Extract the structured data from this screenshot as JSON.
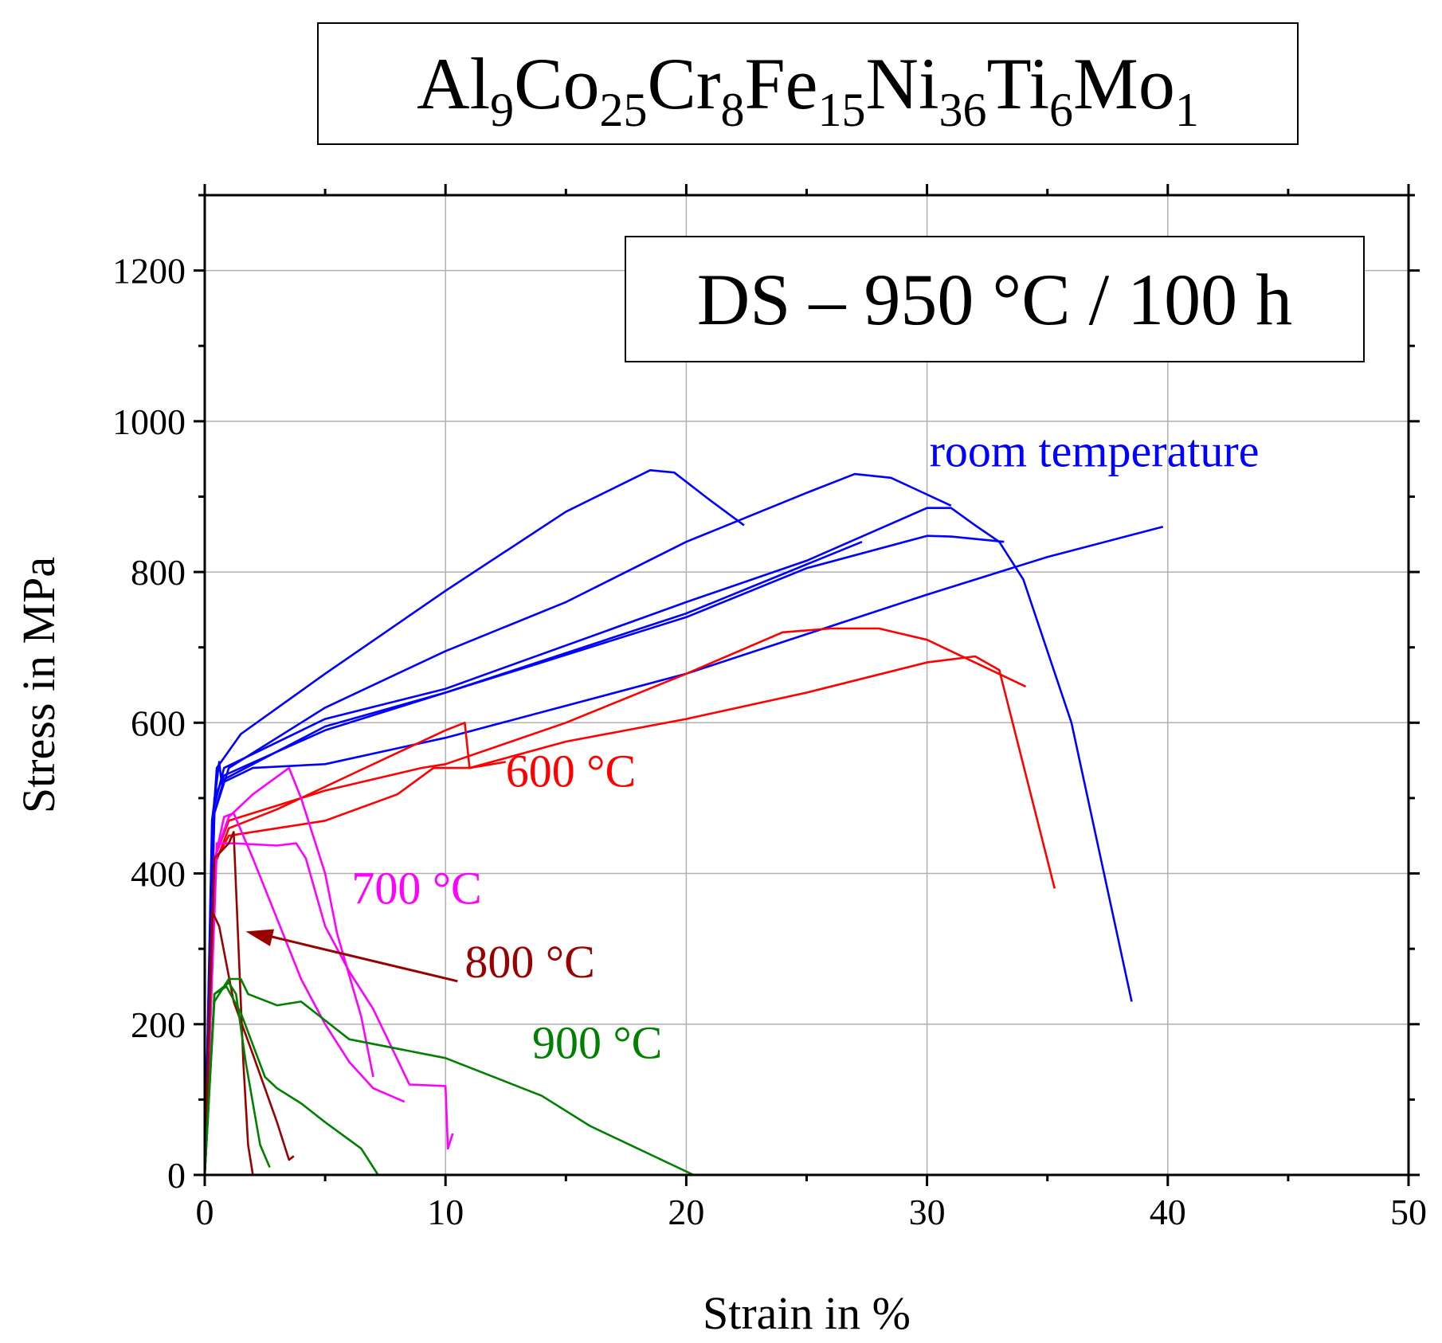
{
  "title": {
    "elements": [
      {
        "symbol": "Al",
        "sub": "9"
      },
      {
        "symbol": "Co",
        "sub": "25"
      },
      {
        "symbol": "Cr",
        "sub": "8"
      },
      {
        "symbol": "Fe",
        "sub": "15"
      },
      {
        "symbol": "Ni",
        "sub": "36"
      },
      {
        "symbol": "Ti",
        "sub": "6"
      },
      {
        "symbol": "Mo",
        "sub": "1"
      }
    ]
  },
  "chart_data": {
    "type": "line",
    "annotation_box": "DS – 950 °C / 100 h",
    "xlabel": "Strain in %",
    "ylabel": "Stress in MPa",
    "xlim": [
      0,
      50
    ],
    "ylim": [
      0,
      1300
    ],
    "xticks": [
      0,
      10,
      20,
      30,
      40,
      50
    ],
    "yticks": [
      0,
      200,
      400,
      600,
      800,
      1000,
      1200
    ],
    "grid": true,
    "series": [
      {
        "name": "room temperature",
        "color": "#0000ff",
        "curves": [
          [
            [
              0,
              0
            ],
            [
              0.3,
              450
            ],
            [
              0.5,
              540
            ],
            [
              1.5,
              585
            ],
            [
              5,
              665
            ],
            [
              10,
              775
            ],
            [
              15,
              880
            ],
            [
              18.5,
              935
            ],
            [
              19.5,
              932
            ],
            [
              21,
              895
            ],
            [
              22.4,
              862
            ]
          ],
          [
            [
              0,
              0
            ],
            [
              0.4,
              480
            ],
            [
              1,
              540
            ],
            [
              5,
              620
            ],
            [
              10,
              695
            ],
            [
              15,
              760
            ],
            [
              20,
              840
            ],
            [
              25,
              905
            ],
            [
              27,
              930
            ],
            [
              28.5,
              925
            ],
            [
              31,
              888
            ]
          ],
          [
            [
              0,
              0
            ],
            [
              0.4,
              490
            ],
            [
              0.8,
              540
            ],
            [
              5,
              605
            ],
            [
              10,
              645
            ],
            [
              20,
              760
            ],
            [
              25,
              815
            ],
            [
              30,
              885
            ],
            [
              31,
              885
            ],
            [
              32,
              862
            ],
            [
              33,
              840
            ],
            [
              34,
              790
            ],
            [
              36,
              600
            ],
            [
              38.5,
              230
            ]
          ],
          [
            [
              0,
              0
            ],
            [
              0.4,
              480
            ],
            [
              0.8,
              525
            ],
            [
              5,
              595
            ],
            [
              10,
              640
            ],
            [
              20,
              740
            ],
            [
              25,
              805
            ],
            [
              30,
              848
            ],
            [
              31,
              847
            ],
            [
              33.2,
              840
            ]
          ],
          [
            [
              0,
              0
            ],
            [
              0.4,
              500
            ],
            [
              0.8,
              530
            ],
            [
              5,
              590
            ],
            [
              10,
              640
            ],
            [
              20,
              745
            ],
            [
              27.3,
              840
            ]
          ],
          [
            [
              0,
              0
            ],
            [
              0.3,
              470
            ],
            [
              0.6,
              548
            ],
            [
              0.7,
              520
            ],
            [
              2,
              540
            ],
            [
              5,
              545
            ],
            [
              10,
              580
            ],
            [
              20,
              665
            ],
            [
              30,
              770
            ],
            [
              35,
              820
            ],
            [
              39.8,
              860
            ]
          ]
        ]
      },
      {
        "name": "600 °C",
        "color": "#ff0000",
        "curves": [
          [
            [
              0,
              0
            ],
            [
              0.4,
              410
            ],
            [
              1,
              460
            ],
            [
              3,
              485
            ],
            [
              6,
              530
            ],
            [
              10,
              590
            ],
            [
              10.8,
              600
            ],
            [
              11,
              540
            ],
            [
              15,
              575
            ],
            [
              20,
              605
            ],
            [
              25,
              640
            ],
            [
              30,
              680
            ],
            [
              32,
              688
            ],
            [
              33,
              670
            ],
            [
              35.3,
              380
            ]
          ],
          [
            [
              0,
              0
            ],
            [
              0.4,
              420
            ],
            [
              1,
              470
            ],
            [
              5,
              510
            ],
            [
              9,
              540
            ],
            [
              10,
              545
            ],
            [
              15,
              600
            ],
            [
              20,
              665
            ],
            [
              24,
              720
            ],
            [
              26,
              725
            ],
            [
              28,
              725
            ],
            [
              30,
              710
            ],
            [
              34.1,
              648
            ]
          ],
          [
            [
              0,
              0
            ],
            [
              0.4,
              415
            ],
            [
              1,
              450
            ],
            [
              5,
              470
            ],
            [
              8,
              505
            ],
            [
              9.5,
              540
            ],
            [
              11,
              540
            ],
            [
              12.5,
              548
            ]
          ]
        ]
      },
      {
        "name": "700 °C",
        "color": "#ff00ff",
        "curves": [
          [
            [
              0,
              0
            ],
            [
              0.4,
              420
            ],
            [
              1,
              475
            ],
            [
              2,
              505
            ],
            [
              3.5,
              540
            ],
            [
              4,
              500
            ],
            [
              5,
              400
            ],
            [
              5.5,
              320
            ],
            [
              6.5,
              210
            ],
            [
              7,
              130
            ]
          ],
          [
            [
              0,
              0
            ],
            [
              0.5,
              440
            ],
            [
              1.2,
              440
            ],
            [
              3,
              437
            ],
            [
              3.8,
              440
            ],
            [
              4.2,
              420
            ],
            [
              5,
              330
            ],
            [
              6,
              270
            ],
            [
              7,
              220
            ],
            [
              8.5,
              120
            ],
            [
              10,
              118
            ],
            [
              10.1,
              35
            ],
            [
              10.3,
              55
            ]
          ],
          [
            [
              0,
              0
            ],
            [
              0.5,
              430
            ],
            [
              0.8,
              475
            ],
            [
              1.2,
              480
            ],
            [
              2,
              420
            ],
            [
              3,
              340
            ],
            [
              4,
              260
            ],
            [
              5,
              200
            ],
            [
              6,
              150
            ],
            [
              7,
              115
            ],
            [
              8.3,
              97
            ]
          ]
        ]
      },
      {
        "name": "800 °C",
        "color": "#990000",
        "curves": [
          [
            [
              0,
              0
            ],
            [
              0.4,
              420
            ],
            [
              1,
              440
            ],
            [
              1.2,
              455
            ],
            [
              1.3,
              380
            ],
            [
              1.6,
              150
            ],
            [
              1.8,
              40
            ],
            [
              2,
              0
            ]
          ],
          [
            [
              0,
              0
            ],
            [
              0.3,
              350
            ],
            [
              0.6,
              330
            ],
            [
              1.2,
              230
            ],
            [
              2,
              160
            ],
            [
              3,
              70
            ],
            [
              3.5,
              20
            ],
            [
              3.7,
              25
            ]
          ]
        ]
      },
      {
        "name": "900 °C",
        "color": "#008000",
        "curves": [
          [
            [
              0,
              0
            ],
            [
              0.4,
              230
            ],
            [
              1,
              260
            ],
            [
              1.5,
              260
            ],
            [
              1.8,
              240
            ],
            [
              3,
              225
            ],
            [
              4,
              230
            ],
            [
              5,
              205
            ],
            [
              6,
              180
            ],
            [
              10,
              155
            ],
            [
              14,
              105
            ],
            [
              16,
              65
            ],
            [
              20.3,
              0
            ]
          ],
          [
            [
              0,
              0
            ],
            [
              0.4,
              240
            ],
            [
              0.9,
              250
            ],
            [
              1.5,
              215
            ],
            [
              2.5,
              130
            ],
            [
              3,
              115
            ],
            [
              4,
              95
            ],
            [
              5,
              70
            ],
            [
              6.5,
              35
            ],
            [
              7.2,
              0
            ]
          ],
          [
            [
              0,
              0
            ],
            [
              0.4,
              240
            ],
            [
              1,
              255
            ],
            [
              1.3,
              240
            ],
            [
              1.7,
              150
            ],
            [
              2.3,
              40
            ],
            [
              2.7,
              10
            ]
          ]
        ]
      }
    ],
    "arrow_800": {
      "from": [
        10.5,
        257
      ],
      "to": [
        1.7,
        323
      ]
    },
    "labels": [
      {
        "text": "room temperature",
        "color": "#0000ff",
        "x": 30.1,
        "y": 940
      },
      {
        "text": "600 °C",
        "color": "#ff0000",
        "x": 12.5,
        "y": 515
      },
      {
        "text": "700 °C",
        "color": "#ff00ff",
        "x": 6.1,
        "y": 360
      },
      {
        "text": "800 °C",
        "color": "#990000",
        "x": 10.8,
        "y": 262
      },
      {
        "text": "900 °C",
        "color": "#008000",
        "x": 13.6,
        "y": 155
      }
    ]
  }
}
